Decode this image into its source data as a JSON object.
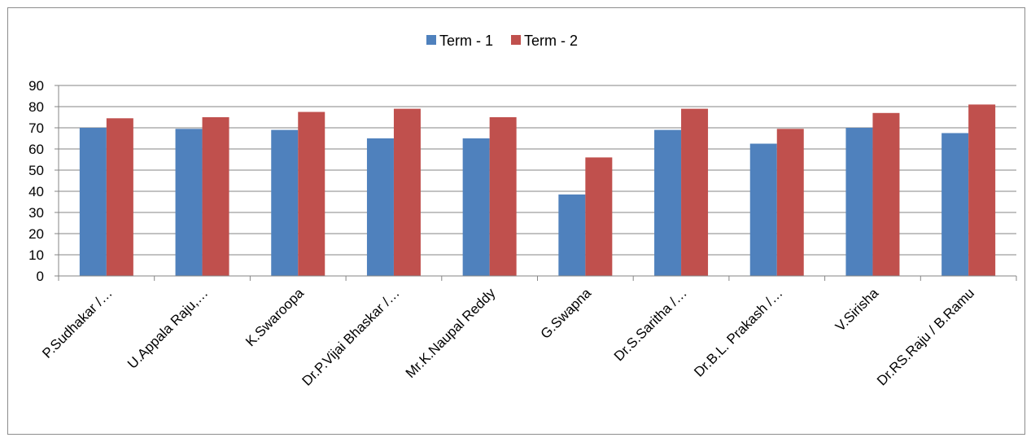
{
  "chart_data": {
    "type": "bar",
    "title": "",
    "xlabel": "",
    "ylabel": "",
    "ylim": [
      0,
      90
    ],
    "y_ticks": [
      0,
      10,
      20,
      30,
      40,
      50,
      60,
      70,
      80,
      90
    ],
    "grid": true,
    "legend_position": "top",
    "categories": [
      "P.Sudhakar /…",
      "U.Appala Raju,…",
      "K.Swaroopa",
      "Dr.P.Vijai Bhaskar /…",
      "Mr.K.Naupal Reddy",
      "G.Swapna",
      "Dr.S.Saritha /…",
      "Dr.B.L. Prakash /…",
      "V.Sirisha",
      "Dr.RS.Raju / B.Ramu"
    ],
    "series": [
      {
        "name": "Term - 1",
        "color": "#4f81bd",
        "values": [
          70,
          69.5,
          69,
          65,
          65,
          38.5,
          69,
          62.5,
          70,
          67.5
        ]
      },
      {
        "name": "Term - 2",
        "color": "#c0504d",
        "values": [
          74.5,
          75,
          77.5,
          79,
          75,
          56,
          79,
          69.5,
          77,
          81
        ]
      }
    ]
  }
}
